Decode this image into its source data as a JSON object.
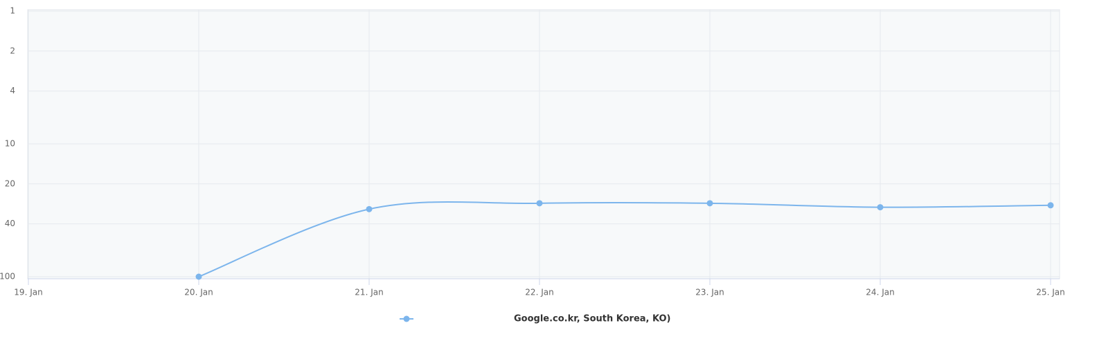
{
  "chart_data": {
    "type": "line",
    "categories": [
      "19. Jan",
      "20. Jan",
      "21. Jan",
      "22. Jan",
      "23. Jan",
      "24. Jan",
      "25. Jan"
    ],
    "series": [
      {
        "name": "Google.co.kr, South Korea, KO)",
        "color": "#7cb5ec",
        "values": [
          null,
          100,
          31,
          28,
          28,
          30,
          29
        ]
      }
    ],
    "ylim": [
      1,
      100
    ],
    "yticks": [
      1,
      2,
      4,
      10,
      20,
      40,
      100
    ],
    "log_scale": true,
    "y_reversed": true,
    "grid": true
  }
}
